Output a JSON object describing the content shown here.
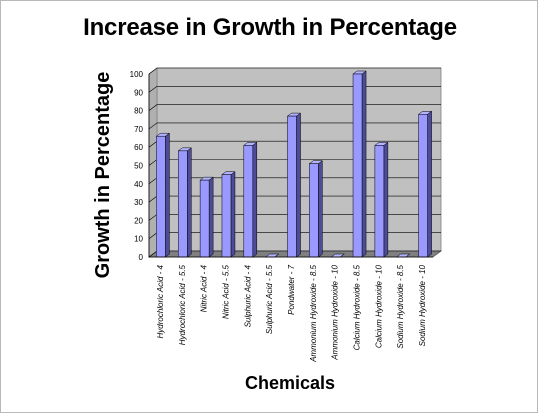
{
  "chart_data": {
    "type": "bar",
    "title": "Increase in Growth in Percentage",
    "xlabel": "Chemicals",
    "ylabel": "Growth in Percentage",
    "ylim": [
      0,
      100
    ],
    "yticks": [
      0,
      10,
      20,
      30,
      40,
      50,
      60,
      70,
      80,
      90,
      100
    ],
    "grid": true,
    "categories": [
      "Hydrochloric Acid - 4",
      "Hydrochloric Acid - 5.5",
      "Nitric Acid - 4",
      "Nitric Acid - 5.5",
      "Sulphuric Acid - 4",
      "Sulphuric Acid - 5.5",
      "Pondwater - 7",
      "Ammonium Hydroxide - 8.5",
      "Ammonium Hydroxide - 10",
      "Calcium Hydroxide - 8.5",
      "Calcium Hydroxide - 10",
      "Sodium Hydroxide - 8.5",
      "Sodium Hydroxide - 10"
    ],
    "values": [
      66,
      58,
      42,
      45,
      61,
      0,
      77,
      51,
      0,
      100,
      61,
      0,
      78
    ],
    "colors": {
      "bar_front": "#9999ff",
      "bar_side": "#4c4c99",
      "bar_top": "#b3b3ff",
      "wall": "#c0c0c0",
      "floor": "#808080"
    }
  }
}
